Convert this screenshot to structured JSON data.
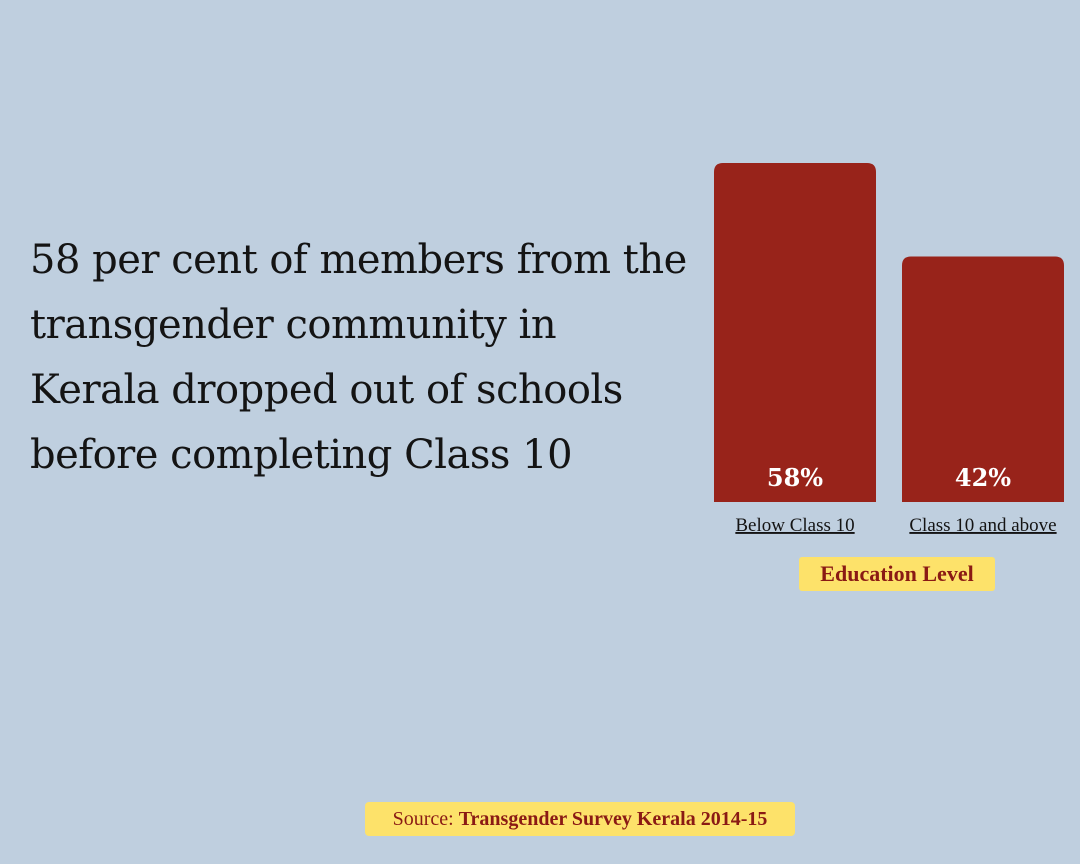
{
  "headline": "58 per cent of members from the transgender community in Kerala dropped out of schools before completing Class 10",
  "source": {
    "prefix": "Source:",
    "name": "Transgender Survey Kerala 2014-15"
  },
  "colors": {
    "bar": "#98231a",
    "background": "#bfcfdf",
    "highlight": "#fde26a",
    "accent_text": "#8a1a14"
  },
  "chart_data": {
    "type": "bar",
    "categories": [
      "Below Class 10",
      "Class 10 and above"
    ],
    "values": [
      58,
      42
    ],
    "value_labels": [
      "58%",
      "42%"
    ],
    "xlabel": "Education Level",
    "ylabel": "",
    "ylim": [
      0,
      58
    ],
    "grid": false
  }
}
